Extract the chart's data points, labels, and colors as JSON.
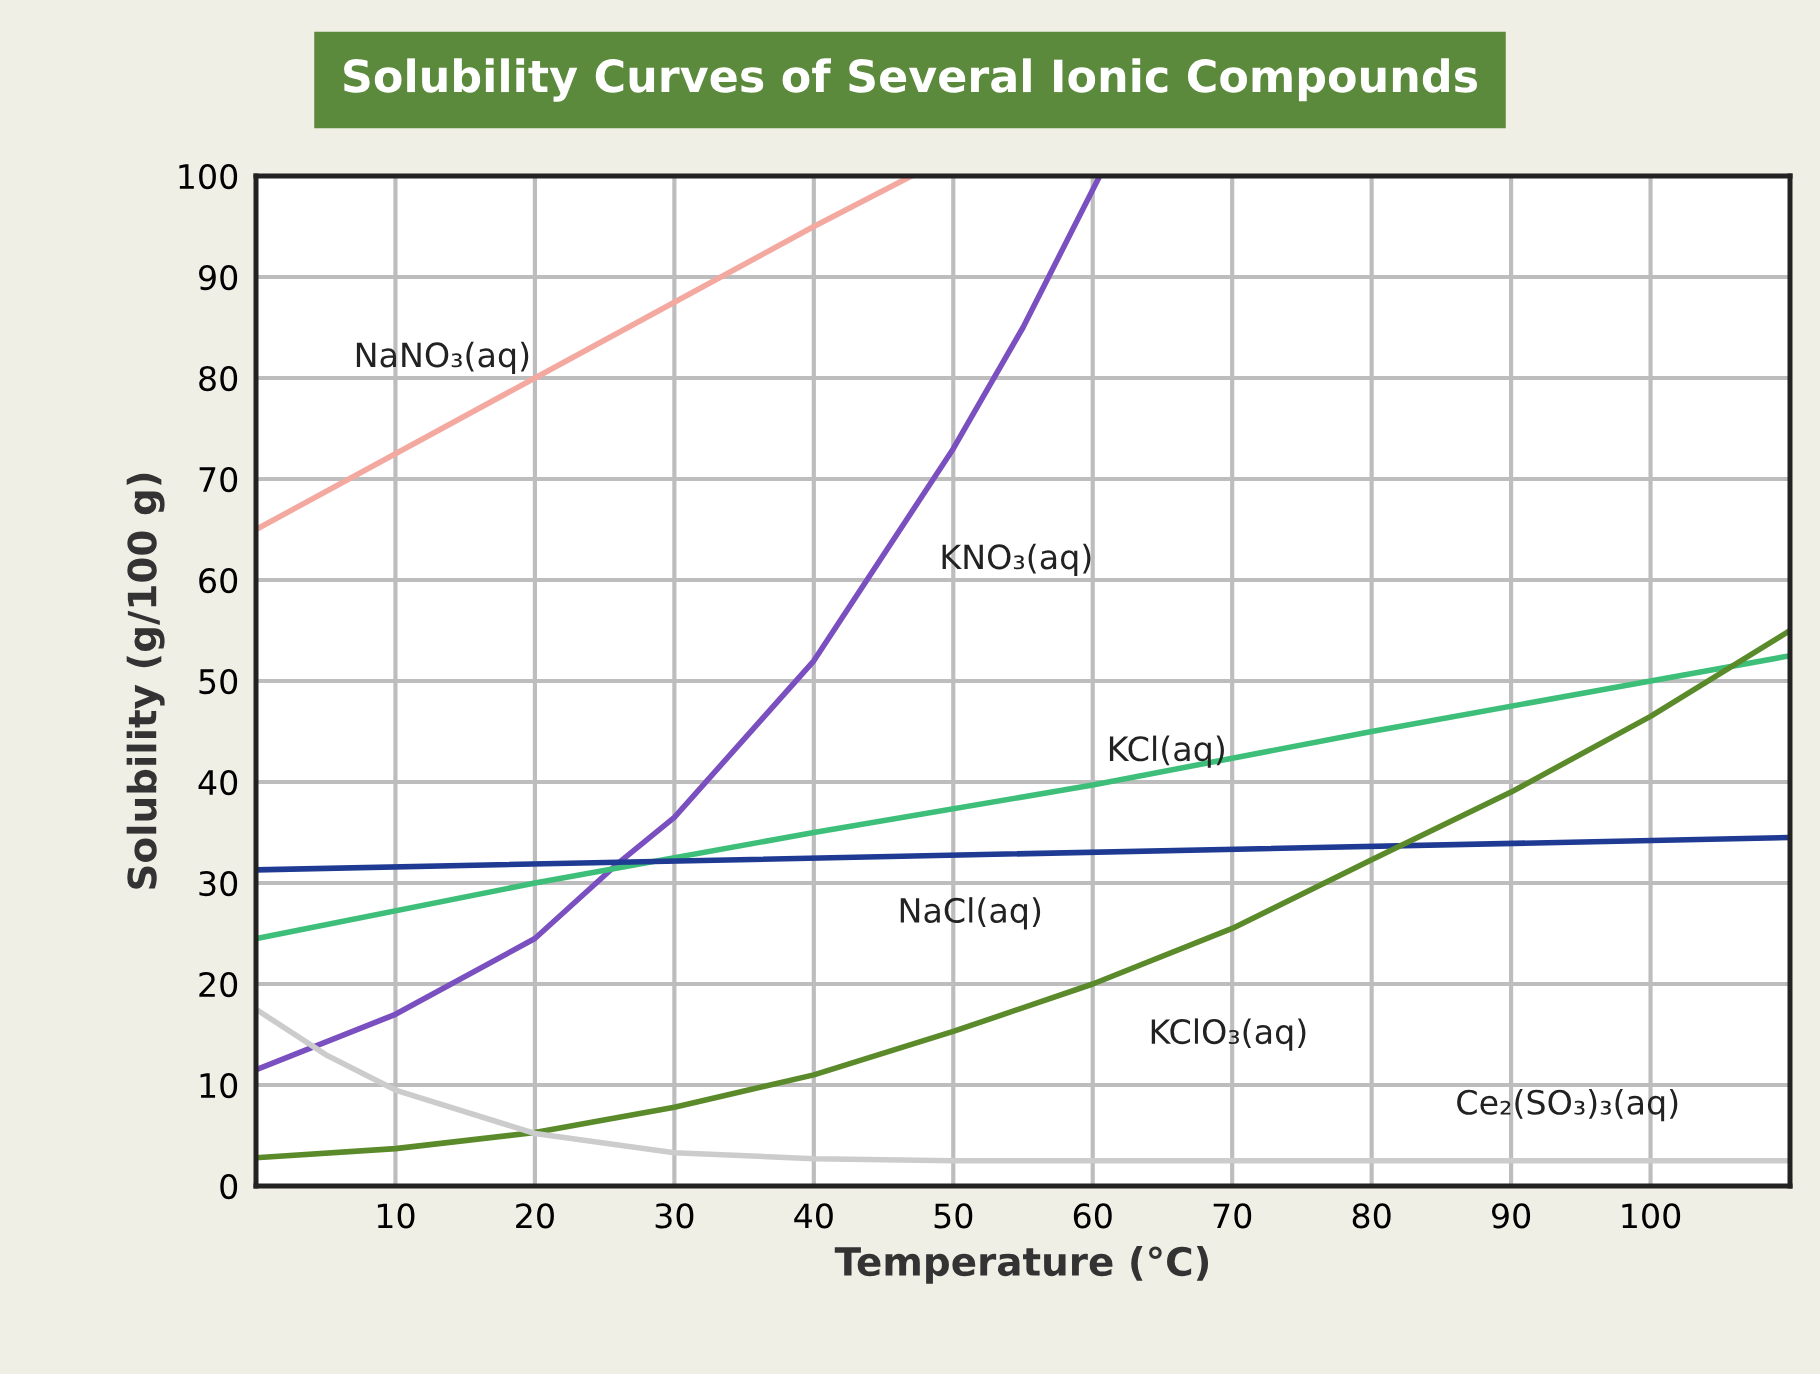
{
  "chart_data": {
    "type": "line",
    "title": "Solubility Curves of Several Ionic Compounds",
    "xlabel": "Temperature (°C)",
    "ylabel": "Solubility (g/100 g)",
    "xlim": [
      0,
      110
    ],
    "ylim": [
      0,
      100
    ],
    "xticks": [
      10,
      20,
      30,
      40,
      50,
      60,
      70,
      80,
      90,
      100
    ],
    "yticks": [
      0,
      10,
      20,
      30,
      40,
      50,
      60,
      70,
      80,
      90,
      100
    ],
    "grid": true,
    "marker": "none",
    "line_style": "solid",
    "series": [
      {
        "name": "NaNO₃(aq)",
        "color": "#f4a9a0",
        "x": [
          0,
          10,
          20,
          30,
          40,
          47
        ],
        "values": [
          65,
          72.5,
          80,
          87.5,
          95,
          100
        ]
      },
      {
        "name": "KNO₃(aq)",
        "color": "#7a4fbf",
        "x": [
          0,
          10,
          20,
          26,
          30,
          40,
          50,
          55,
          60.5
        ],
        "values": [
          11.5,
          17,
          24.5,
          32,
          36.5,
          52,
          73,
          85,
          100
        ]
      },
      {
        "name": "KCl(aq)",
        "color": "#3dbf7a",
        "x": [
          0,
          20,
          40,
          60,
          80,
          100,
          110
        ],
        "values": [
          24.5,
          30,
          35,
          39.7,
          45,
          50,
          52.5
        ]
      },
      {
        "name": "NaCl(aq)",
        "color": "#1f3a93",
        "x": [
          0,
          110
        ],
        "values": [
          31.3,
          34.5
        ]
      },
      {
        "name": "KClO₃(aq)",
        "color": "#5a8a2a",
        "x": [
          0,
          10,
          20,
          30,
          40,
          50,
          60,
          70,
          80,
          90,
          100,
          110
        ],
        "values": [
          2.8,
          3.7,
          5.3,
          7.8,
          11,
          15.3,
          20,
          25.5,
          32.3,
          39,
          46.5,
          55
        ]
      },
      {
        "name": "Ce₂(SO₃)₃(aq)",
        "color": "#cccccc",
        "x": [
          0,
          5,
          10,
          20,
          30,
          40,
          50,
          110
        ],
        "values": [
          17.5,
          13,
          9.5,
          5.2,
          3.3,
          2.7,
          2.5,
          2.5
        ]
      }
    ]
  }
}
